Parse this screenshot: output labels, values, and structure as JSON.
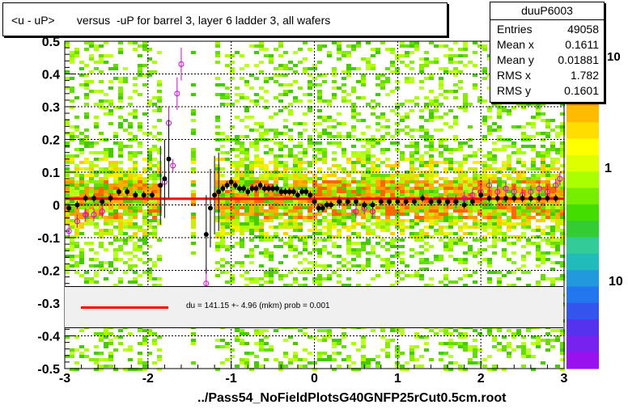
{
  "title": "<u - uP>       versus  -uP for barrel 3, layer 6 ladder 3, all wafers",
  "x_axis_title": "../Pass54_NoFieldPlotsG40GNFP25rCut0.5cm.root",
  "stats": {
    "name": "duuP6003",
    "rows": [
      {
        "label": "Entries",
        "value": "49058"
      },
      {
        "label": "Mean x",
        "value": "0.1611"
      },
      {
        "label": "Mean y",
        "value": "0.01881"
      },
      {
        "label": "RMS x",
        "value": "1.782"
      },
      {
        "label": "RMS y",
        "value": "0.1601"
      }
    ]
  },
  "fit_legend": "du =  141.15 +-  4.96 (mkm) prob = 0.001",
  "palette_labels": [
    "10",
    "1",
    "10"
  ],
  "colors": {
    "fit_line": "#ff0000",
    "profile_black": "#000000",
    "profile_magenta": "#dd00dd",
    "fit_box_bg": "#f0f0f0"
  },
  "chart_data": {
    "type": "heatmap",
    "title": "<u - uP>       versus  -uP for barrel 3, layer 6 ladder 3, all wafers",
    "xlabel": "../Pass54_NoFieldPlotsG40GNFP25rCut0.5cm.root",
    "ylabel": "",
    "xlim": [
      -3,
      3
    ],
    "ylim": [
      -0.5,
      0.5
    ],
    "x_ticks": [
      "-3",
      "-2",
      "-1",
      "0",
      "1",
      "2",
      "3"
    ],
    "y_ticks": [
      "-0.5",
      "-0.4",
      "-0.3",
      "-0.2",
      "-0.1",
      "0",
      "0.1",
      "0.2",
      "0.3",
      "0.4",
      "0.5"
    ],
    "grid": true,
    "empty_x_ranges": [
      [
        -1.85,
        -1.5
      ],
      [
        -1.4,
        -1.2
      ]
    ],
    "fit": {
      "y": 0.0188,
      "x_range": [
        -3,
        3
      ]
    },
    "profile_black": {
      "x": [
        -2.95,
        -2.85,
        -2.75,
        -2.65,
        -2.55,
        -2.45,
        -2.35,
        -2.25,
        -2.15,
        -2.05,
        -1.95,
        -1.85,
        -1.8,
        -1.75,
        -1.3,
        -1.25,
        -1.2,
        -1.15,
        -1.1,
        -1.05,
        -1.0,
        -0.95,
        -0.9,
        -0.85,
        -0.8,
        -0.75,
        -0.7,
        -0.65,
        -0.6,
        -0.55,
        -0.5,
        -0.45,
        -0.4,
        -0.35,
        -0.3,
        -0.25,
        -0.2,
        -0.15,
        -0.1,
        -0.05,
        0.0,
        0.05,
        0.1,
        0.15,
        0.2,
        0.3,
        0.4,
        0.5,
        0.6,
        0.7,
        0.8,
        0.9,
        1.0,
        1.1,
        1.2,
        1.3,
        1.4,
        1.5,
        1.6,
        1.7,
        1.8,
        1.9,
        2.0,
        2.1,
        2.2,
        2.3,
        2.4,
        2.5,
        2.6,
        2.7,
        2.8,
        2.9
      ],
      "y": [
        -0.01,
        0.0,
        0.02,
        0.02,
        0.01,
        0.02,
        0.04,
        0.04,
        0.03,
        0.03,
        0.03,
        0.06,
        0.08,
        0.14,
        -0.09,
        -0.01,
        0.03,
        0.04,
        0.05,
        0.06,
        0.07,
        0.06,
        0.05,
        0.05,
        0.04,
        0.05,
        0.05,
        0.06,
        0.05,
        0.05,
        0.05,
        0.05,
        0.04,
        0.04,
        0.04,
        0.04,
        0.03,
        0.04,
        0.04,
        0.03,
        0.01,
        -0.01,
        -0.01,
        0.0,
        0.0,
        0.01,
        0.01,
        0.01,
        0.0,
        0.0,
        0.01,
        0.01,
        0.01,
        0.01,
        0.01,
        0.02,
        0.01,
        0.01,
        0.01,
        0.01,
        0.0,
        0.01,
        0.03,
        0.02,
        0.02,
        0.02,
        0.02,
        0.02,
        0.02,
        0.02,
        0.02,
        0.02
      ]
    },
    "profile_magenta": {
      "x": [
        -2.95,
        -2.85,
        -2.75,
        -2.65,
        -2.55,
        -1.8,
        -1.75,
        -1.7,
        -1.65,
        -1.6,
        -1.3,
        0.3,
        0.5,
        0.6,
        0.7,
        1.6,
        1.7,
        1.8,
        1.9,
        2.0,
        2.1,
        2.2,
        2.3,
        2.4,
        2.5,
        2.6,
        2.7,
        2.8,
        2.9,
        2.95
      ],
      "y": [
        -0.08,
        -0.05,
        -0.03,
        -0.03,
        -0.02,
        0.07,
        0.25,
        0.12,
        0.34,
        0.43,
        -0.24,
        0.01,
        -0.02,
        -0.01,
        -0.02,
        0.01,
        0.01,
        0.02,
        0.03,
        0.04,
        0.06,
        0.04,
        0.05,
        0.04,
        0.03,
        0.04,
        0.05,
        0.04,
        0.06,
        0.08
      ]
    }
  }
}
